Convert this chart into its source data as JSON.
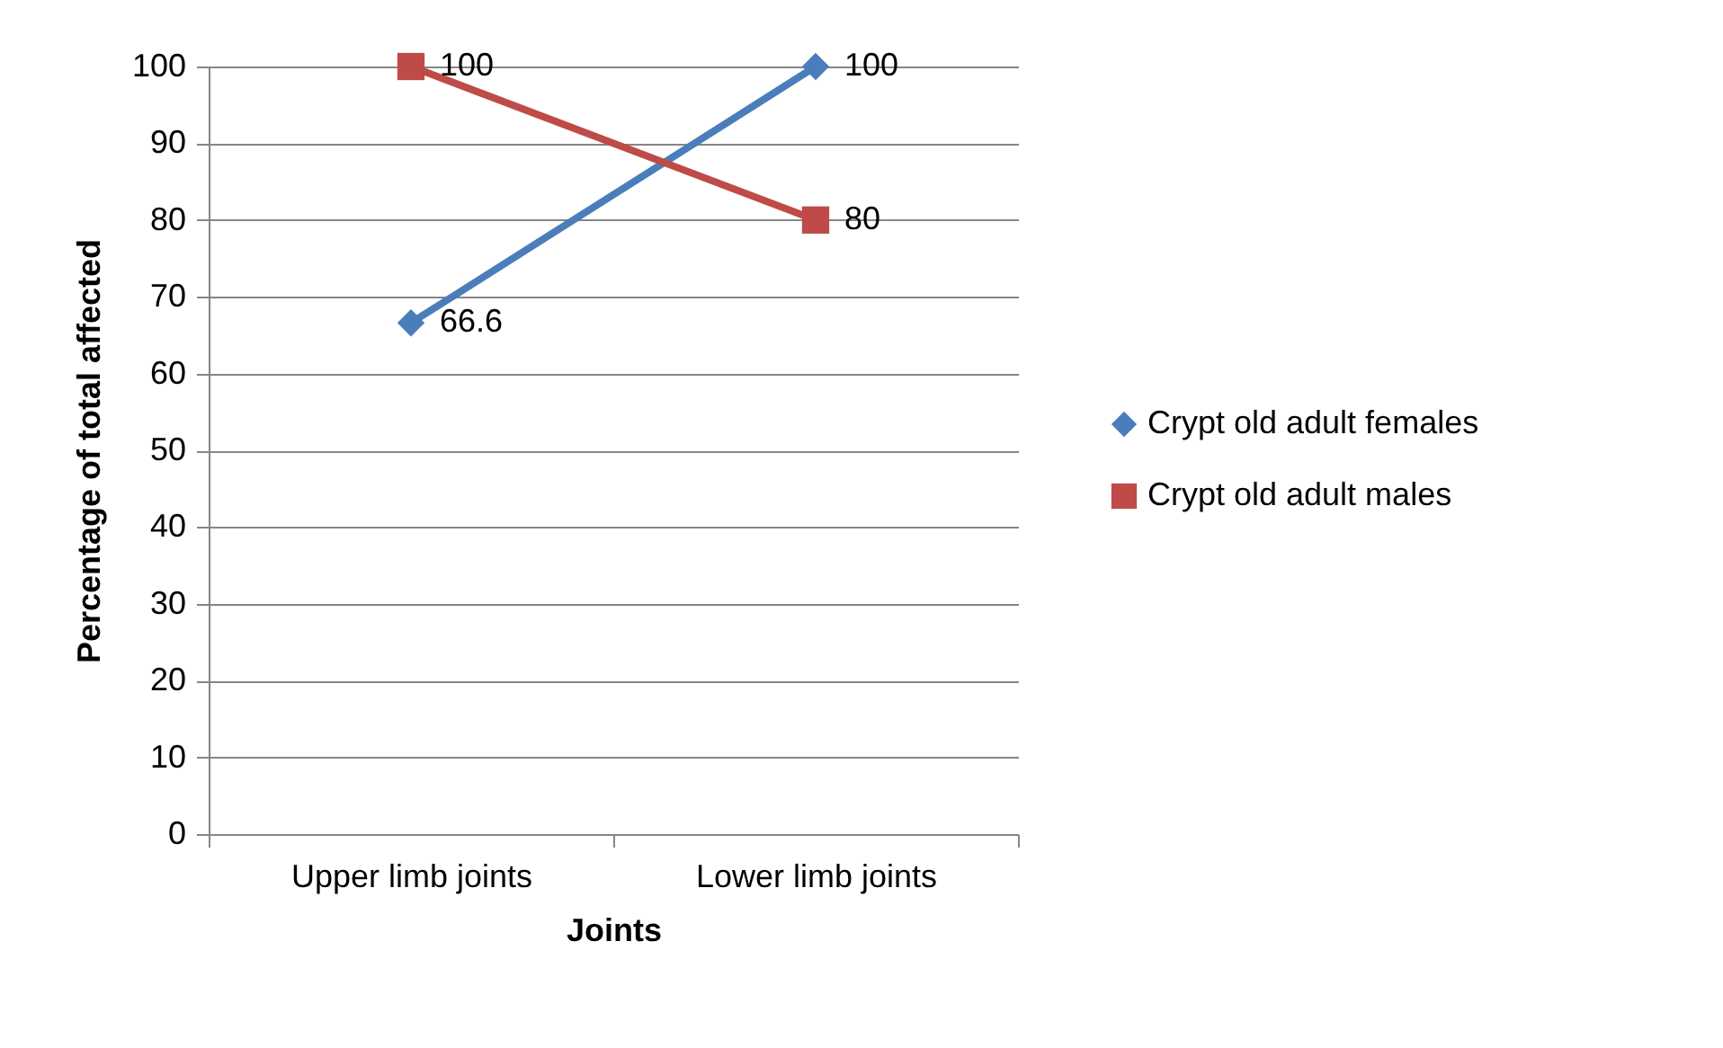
{
  "chart_data": {
    "type": "line",
    "xlabel": "Joints",
    "ylabel": "Percentage of total affected",
    "categories": [
      "Upper limb joints",
      "Lower limb joints"
    ],
    "series": [
      {
        "name": "Crypt old adult females",
        "color": "#4a7ebb",
        "marker": "diamond",
        "values": [
          66.6,
          100
        ]
      },
      {
        "name": "Crypt old adult males",
        "color": "#be4b48",
        "marker": "square",
        "values": [
          100,
          80
        ]
      }
    ],
    "ylim": [
      0,
      100
    ],
    "yticks": [
      0,
      10,
      20,
      30,
      40,
      50,
      60,
      70,
      80,
      90,
      100
    ],
    "grid": "y",
    "legend": "right",
    "data_labels": true
  }
}
